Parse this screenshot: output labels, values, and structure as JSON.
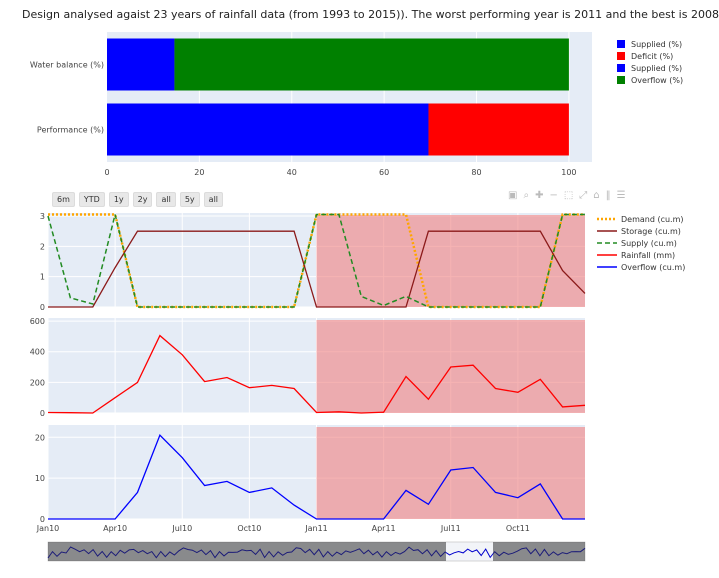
{
  "headline": "Design analysed agaist 23 years of rainfall data (from 1993 to 2015)). The worst performing year is 2011 and the best is 2008",
  "range_buttons": [
    "6m",
    "YTD",
    "1y",
    "2y",
    "all",
    "5y",
    "all"
  ],
  "modebar_icons": [
    "camera-icon",
    "zoom-icon",
    "plus-icon",
    "minus-icon",
    "box-select-icon",
    "autoscale-icon",
    "reset-icon",
    "spike-icon",
    "compare-icon"
  ],
  "colors": {
    "blue": "#0000ff",
    "red": "#ff0000",
    "green": "#008000",
    "orange": "#ffa500",
    "storage": "#8b1a1a",
    "plotbg": "#e5ecf6",
    "shade": "#f08080"
  },
  "chart_data": [
    {
      "type": "bar",
      "orientation": "horizontal",
      "stacked": true,
      "categories": [
        "Performance (%)",
        "Water balance (%)"
      ],
      "series": [
        {
          "name": "Supplied (%)",
          "color": "#0000ff",
          "values": [
            69.6,
            null
          ]
        },
        {
          "name": "Deficit (%)",
          "color": "#ff0000",
          "values": [
            30.4,
            null
          ]
        },
        {
          "name": "Supplied (%)",
          "color": "#0000ff",
          "values": [
            null,
            14.6
          ]
        },
        {
          "name": "Overflow (%)",
          "color": "#008000",
          "values": [
            null,
            85.4
          ]
        }
      ],
      "xlim": [
        0,
        105
      ],
      "xticks": [
        "0",
        "20",
        "40",
        "60",
        "80",
        "100"
      ],
      "legend": "right"
    },
    {
      "type": "line",
      "x": [
        "2010-01",
        "2010-02",
        "2010-03",
        "2010-04",
        "2010-05",
        "2010-06",
        "2010-07",
        "2010-08",
        "2010-09",
        "2010-10",
        "2010-11",
        "2010-12",
        "2011-01",
        "2011-02",
        "2011-03",
        "2011-04",
        "2011-05",
        "2011-06",
        "2011-07",
        "2011-08",
        "2011-09",
        "2011-10",
        "2011-11",
        "2011-12",
        "2012-01"
      ],
      "xticks": [
        "Jan10",
        "Apr10",
        "Jul10",
        "Oct10",
        "Jan11",
        "Apr11",
        "Jul11",
        "Oct11"
      ],
      "shaded_range": [
        "2011-01",
        "2012-01"
      ],
      "legend": "right",
      "panels": [
        {
          "ylim": [
            0,
            3.1
          ],
          "yticks": [
            "0",
            "1",
            "2",
            "3"
          ],
          "series": [
            {
              "name": "Demand (cu.m)",
              "color": "#ffa500",
              "dash": "dot",
              "values": [
                3.05,
                3.05,
                3.05,
                3.05,
                0,
                0,
                0,
                0,
                0,
                0,
                0,
                0,
                3.05,
                3.05,
                3.05,
                3.05,
                3.05,
                0,
                0,
                0,
                0,
                0,
                0,
                3.05,
                3.05
              ]
            },
            {
              "name": "Storage (cu.m)",
              "color": "#8b1a1a",
              "dash": "solid",
              "values": [
                0,
                0,
                0,
                1.3,
                2.5,
                2.5,
                2.5,
                2.5,
                2.5,
                2.5,
                2.5,
                2.5,
                0,
                0,
                0,
                0,
                0,
                2.5,
                2.5,
                2.5,
                2.5,
                2.5,
                2.5,
                1.2,
                0.45
              ]
            },
            {
              "name": "Supply (cu.m)",
              "color": "#228b22",
              "dash": "dash",
              "values": [
                3.0,
                0.3,
                0.1,
                3.05,
                0,
                0,
                0,
                0,
                0,
                0,
                0,
                0,
                3.05,
                3.05,
                0.35,
                0.05,
                0.35,
                0,
                0,
                0,
                0,
                0,
                0,
                3.05,
                3.05
              ]
            }
          ]
        },
        {
          "ylim": [
            0,
            620
          ],
          "yticks": [
            "0",
            "200",
            "400",
            "600"
          ],
          "series": [
            {
              "name": "Rainfall (mm)",
              "color": "#ff0000",
              "dash": "solid",
              "values": [
                3,
                2,
                0,
                100,
                200,
                505,
                380,
                205,
                232,
                165,
                180,
                160,
                3,
                8,
                0,
                5,
                238,
                90,
                300,
                312,
                160,
                135,
                220,
                40,
                50
              ]
            }
          ]
        },
        {
          "ylim": [
            0,
            23
          ],
          "yticks": [
            "0",
            "10",
            "20"
          ],
          "series": [
            {
              "name": "Overflow (cu.m)",
              "color": "#0000ff",
              "dash": "solid",
              "values": [
                0,
                0,
                0,
                0,
                6.5,
                20.5,
                15,
                8.2,
                9.2,
                6.5,
                7.6,
                3.4,
                0,
                0,
                0,
                0,
                7,
                3.6,
                12,
                12.6,
                6.5,
                5.2,
                8.6,
                0,
                0
              ]
            }
          ]
        }
      ]
    }
  ]
}
